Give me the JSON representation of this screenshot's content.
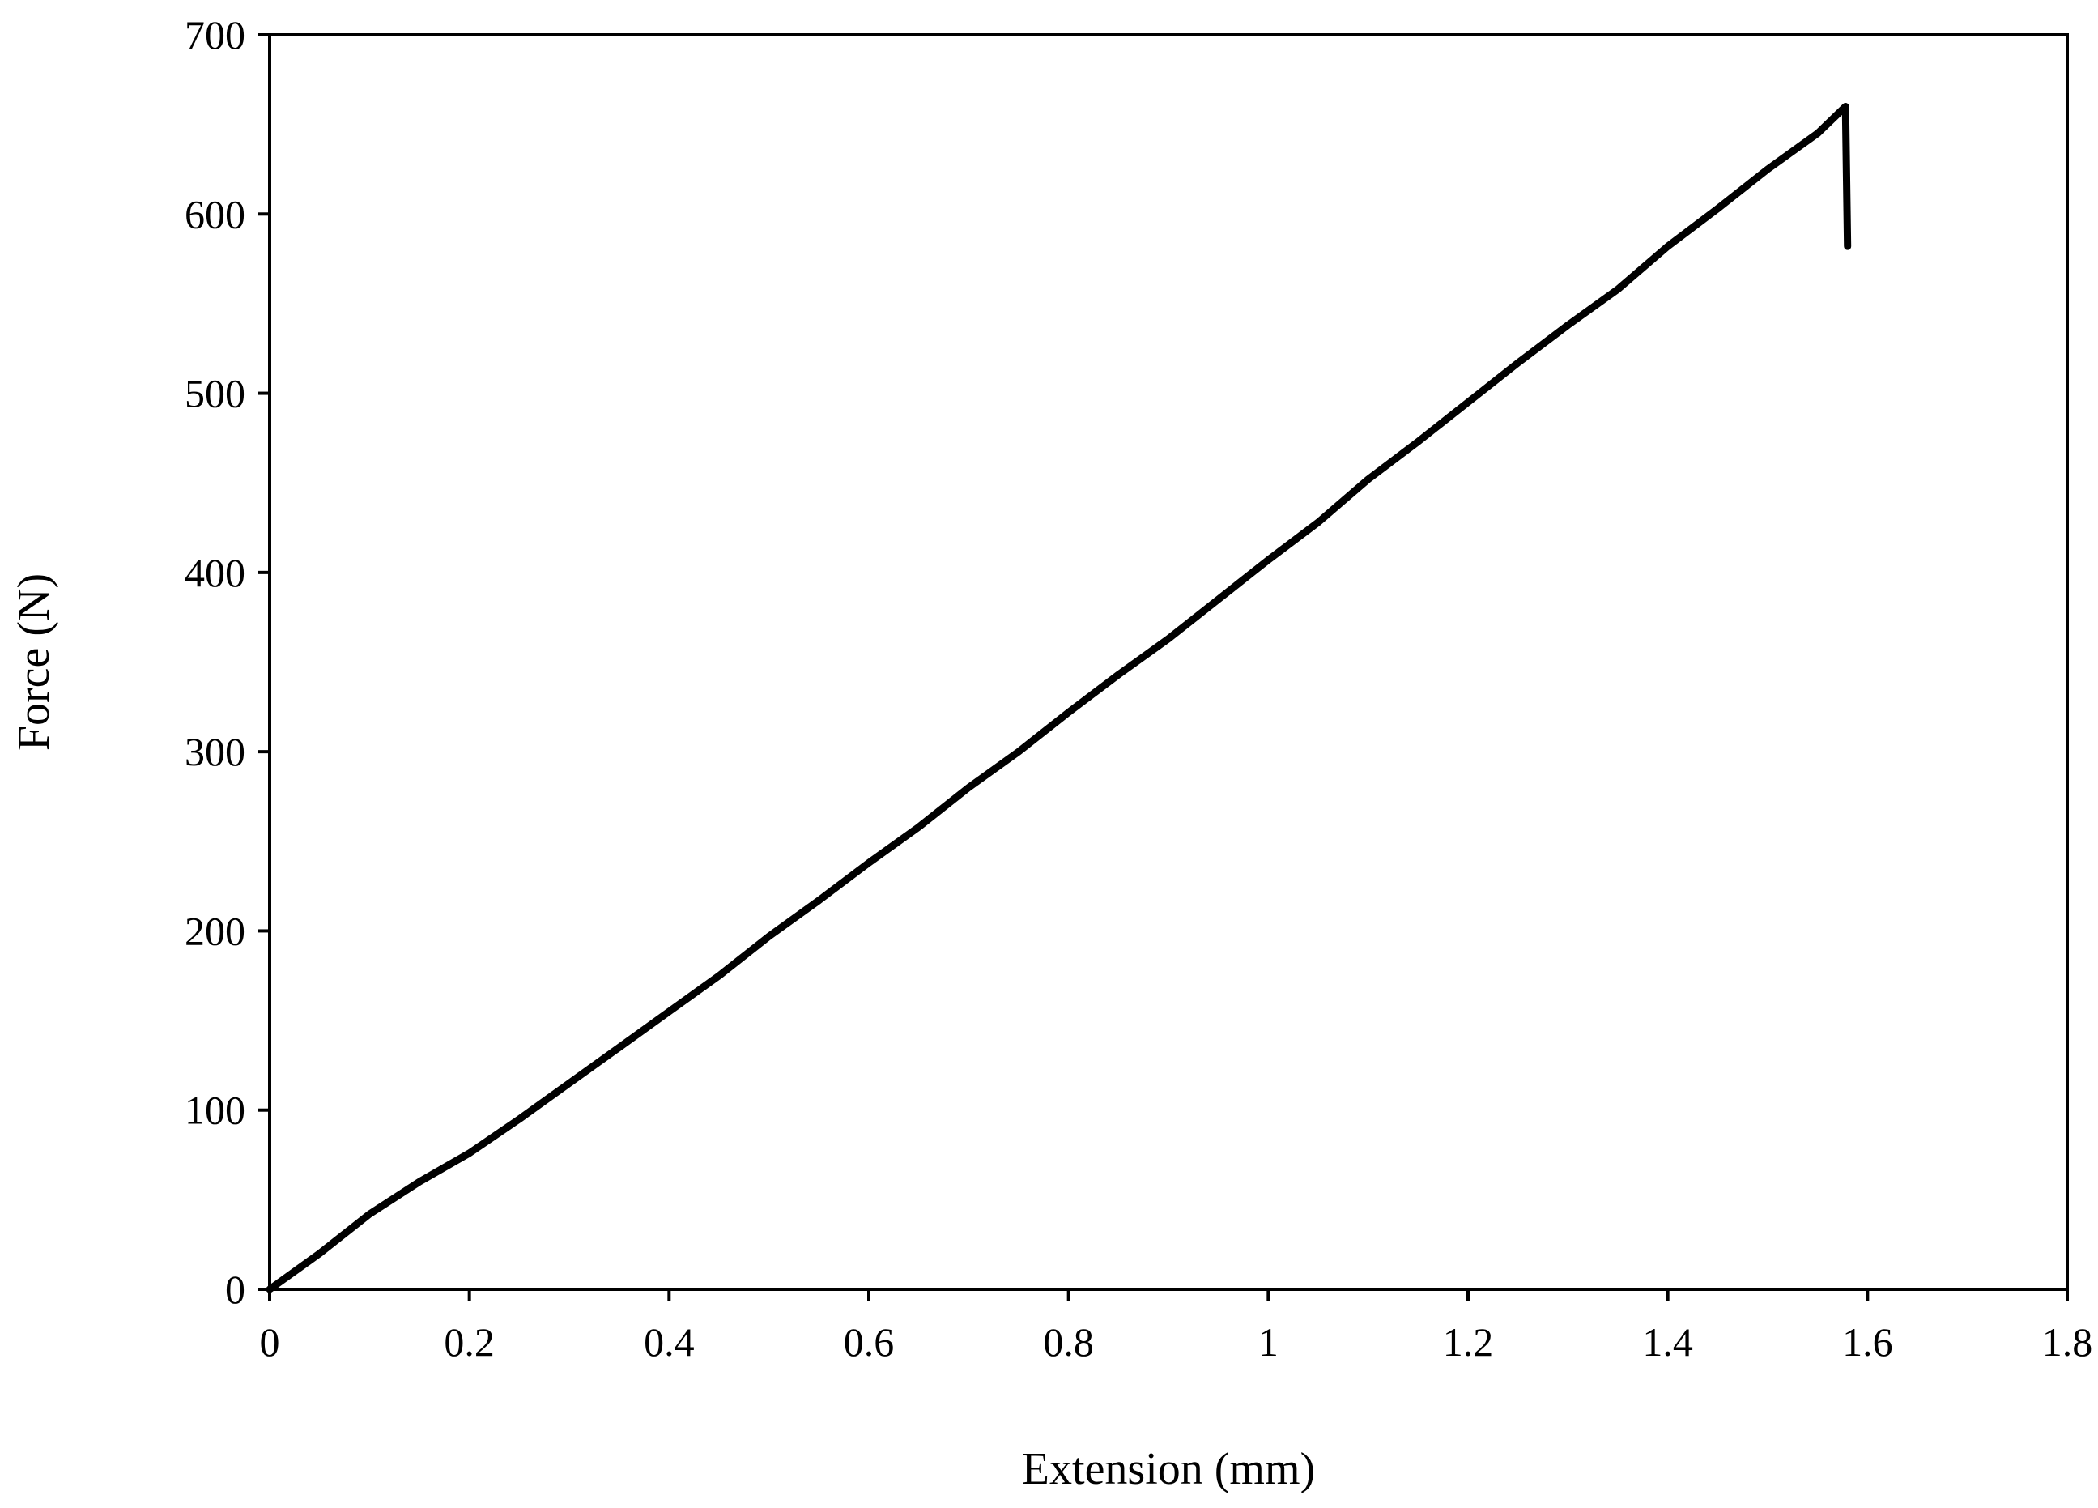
{
  "chart_data": {
    "type": "line",
    "title": "",
    "xlabel": "Extension (mm)",
    "ylabel": "Force (N)",
    "xlim": [
      0,
      1.8
    ],
    "ylim": [
      0,
      700
    ],
    "x_ticks": [
      "0",
      "0.2",
      "0.4",
      "0.6",
      "0.8",
      "1",
      "1.2",
      "1.4",
      "1.6",
      "1.8"
    ],
    "y_ticks": [
      "0",
      "100",
      "200",
      "300",
      "400",
      "500",
      "600",
      "700"
    ],
    "x_tick_values": [
      0,
      0.2,
      0.4,
      0.6,
      0.8,
      1.0,
      1.2,
      1.4,
      1.6,
      1.8
    ],
    "y_tick_values": [
      0,
      100,
      200,
      300,
      400,
      500,
      600,
      700
    ],
    "grid": false,
    "legend": "none",
    "series": [
      {
        "color": "#000000",
        "x": [
          0,
          0.05,
          0.1,
          0.15,
          0.2,
          0.25,
          0.3,
          0.35,
          0.4,
          0.45,
          0.5,
          0.55,
          0.6,
          0.65,
          0.7,
          0.75,
          0.8,
          0.85,
          0.9,
          0.95,
          1.0,
          1.05,
          1.1,
          1.15,
          1.2,
          1.25,
          1.3,
          1.35,
          1.4,
          1.45,
          1.5,
          1.55,
          1.578,
          1.58
        ],
        "y": [
          0,
          20,
          42,
          60,
          76,
          95,
          115,
          135,
          155,
          175,
          197,
          217,
          238,
          258,
          280,
          300,
          322,
          343,
          363,
          385,
          407,
          428,
          452,
          473,
          495,
          517,
          538,
          558,
          582,
          603,
          625,
          645,
          660,
          582
        ]
      }
    ]
  }
}
